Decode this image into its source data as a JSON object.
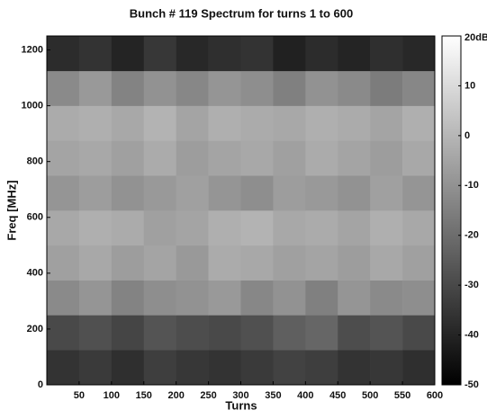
{
  "chart_data": {
    "type": "heatmap",
    "title": "Bunch # 119 Spectrum for turns 1 to 600",
    "x_label": "Turns",
    "y_label": "Freq [MHz]",
    "xlim": [
      0,
      600
    ],
    "ylim": [
      0,
      1250
    ],
    "xticks": [
      50,
      100,
      150,
      200,
      250,
      300,
      350,
      400,
      450,
      500,
      550,
      600
    ],
    "yticks": [
      0,
      200,
      400,
      600,
      800,
      1000,
      1200
    ],
    "xbins": [
      0,
      50,
      100,
      150,
      200,
      250,
      300,
      350,
      400,
      450,
      500,
      550,
      600
    ],
    "ybins": [
      0,
      125,
      250,
      375,
      500,
      625,
      750,
      875,
      1000,
      1125,
      1250
    ],
    "colormap": "gray",
    "zlim": [
      -50,
      20
    ],
    "cticks": [
      {
        "value": 20,
        "label": "20dB"
      },
      10,
      0,
      -10,
      -20,
      -30,
      -40,
      -50
    ],
    "z": [
      [
        -36,
        -34,
        -37,
        -33,
        -35,
        -36,
        -34,
        -32,
        -33,
        -36,
        -35,
        -37
      ],
      [
        -30,
        -28,
        -31,
        -27,
        -29,
        -30,
        -28,
        -24,
        -22,
        -29,
        -27,
        -30
      ],
      [
        -12,
        -9,
        -14,
        -11,
        -10,
        -8,
        -13,
        -10,
        -15,
        -9,
        -12,
        -11
      ],
      [
        -6,
        -4,
        -7,
        -5,
        -8,
        -3,
        -4,
        -6,
        -5,
        -7,
        -4,
        -6
      ],
      [
        -4,
        -2,
        -3,
        -6,
        -5,
        -2,
        -1,
        -4,
        -3,
        -5,
        -2,
        -4
      ],
      [
        -9,
        -7,
        -10,
        -8,
        -6,
        -9,
        -11,
        -7,
        -8,
        -10,
        -6,
        -9
      ],
      [
        -5,
        -4,
        -6,
        -3,
        -7,
        -5,
        -4,
        -6,
        -3,
        -5,
        -7,
        -4
      ],
      [
        -3,
        -2,
        -4,
        -1,
        -5,
        -2,
        -3,
        -4,
        -2,
        -3,
        -5,
        -2
      ],
      [
        -12,
        -8,
        -14,
        -10,
        -13,
        -9,
        -11,
        -15,
        -10,
        -12,
        -16,
        -13
      ],
      [
        -38,
        -36,
        -40,
        -35,
        -39,
        -37,
        -36,
        -41,
        -38,
        -40,
        -37,
        -39
      ]
    ]
  }
}
